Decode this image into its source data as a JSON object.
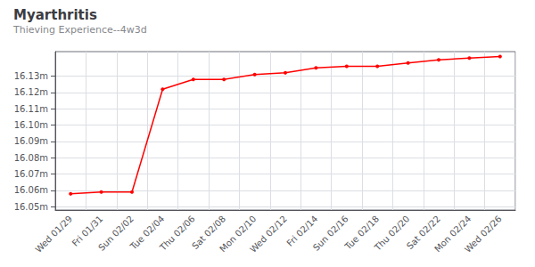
{
  "chart_data": {
    "type": "line",
    "title": "Myarthritis",
    "subtitle": "Thieving Experience--4w3d",
    "categories": [
      "Wed 01/29",
      "Fri 01/31",
      "Sun 02/02",
      "Tue 02/04",
      "Thu 02/06",
      "Sat 02/08",
      "Mon 02/10",
      "Wed 02/12",
      "Fri 02/14",
      "Sun 02/16",
      "Tue 02/18",
      "Thu 02/20",
      "Sat 02/22",
      "Mon 02/24",
      "Wed 02/26"
    ],
    "values": [
      16.058,
      16.059,
      16.059,
      16.122,
      16.128,
      16.128,
      16.131,
      16.132,
      16.135,
      16.136,
      16.136,
      16.138,
      16.14,
      16.141,
      16.142
    ],
    "color": "#ff0000",
    "marker": "circle",
    "ylim": [
      16.048,
      16.145
    ],
    "yticks": [
      {
        "value": 16.05,
        "label": "16.05m"
      },
      {
        "value": 16.06,
        "label": "16.06m"
      },
      {
        "value": 16.07,
        "label": "16.07m"
      },
      {
        "value": 16.08,
        "label": "16.08m"
      },
      {
        "value": 16.09,
        "label": "16.09m"
      },
      {
        "value": 16.1,
        "label": "16.10m"
      },
      {
        "value": 16.11,
        "label": "16.11m"
      },
      {
        "value": 16.12,
        "label": "16.12m"
      },
      {
        "value": 16.13,
        "label": "16.13m"
      }
    ],
    "grid": true
  }
}
